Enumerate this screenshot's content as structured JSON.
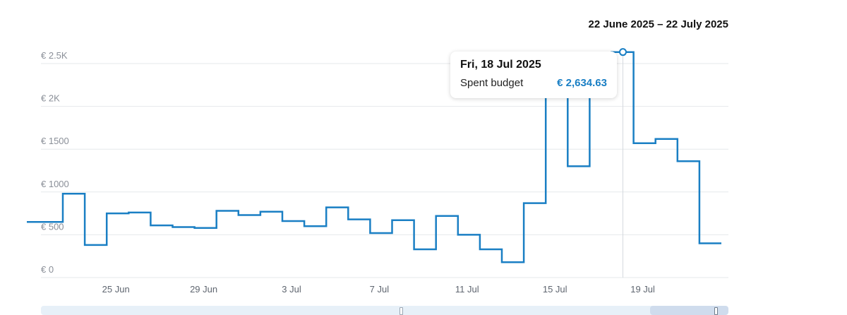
{
  "header": {
    "range_label": "22 June 2025 – 22 July 2025"
  },
  "colors": {
    "line": "#1a7fc4",
    "grid": "#e6e8eb",
    "axis_text": "#8a8f98"
  },
  "chart_data": {
    "type": "line",
    "step": true,
    "title": "22 June 2025 – 22 July 2025",
    "xlabel": "",
    "ylabel": "",
    "ylim": [
      0,
      2500
    ],
    "y_ticks": [
      0,
      500,
      1000,
      1500,
      2000,
      2500
    ],
    "y_tick_labels": [
      "€ 0",
      "€ 500",
      "€ 1000",
      "€ 1500",
      "€ 2K",
      "€ 2.5K"
    ],
    "x_tick_labels": [
      "25 Jun",
      "29 Jun",
      "3 Jul",
      "7 Jul",
      "11 Jul",
      "15 Jul",
      "19 Jul"
    ],
    "grid": true,
    "x": [
      "2025-06-22",
      "2025-06-23",
      "2025-06-24",
      "2025-06-25",
      "2025-06-26",
      "2025-06-27",
      "2025-06-28",
      "2025-06-29",
      "2025-06-30",
      "2025-07-01",
      "2025-07-02",
      "2025-07-03",
      "2025-07-04",
      "2025-07-05",
      "2025-07-06",
      "2025-07-07",
      "2025-07-08",
      "2025-07-09",
      "2025-07-10",
      "2025-07-11",
      "2025-07-12",
      "2025-07-13",
      "2025-07-14",
      "2025-07-15",
      "2025-07-16",
      "2025-07-17",
      "2025-07-18",
      "2025-07-19",
      "2025-07-20",
      "2025-07-21",
      "2025-07-22"
    ],
    "series": [
      {
        "values": [
          650,
          980,
          380,
          750,
          760,
          610,
          590,
          580,
          780,
          730,
          770,
          660,
          600,
          820,
          680,
          520,
          670,
          330,
          720,
          500,
          330,
          180,
          870,
          2350,
          1300,
          2400,
          2634.63,
          1570,
          1620,
          1360,
          400
        ]
      }
    ],
    "tooltip": {
      "date": "Fri, 18 Jul 2025",
      "label": "Spent budget",
      "value": "€ 2,634.63"
    }
  }
}
